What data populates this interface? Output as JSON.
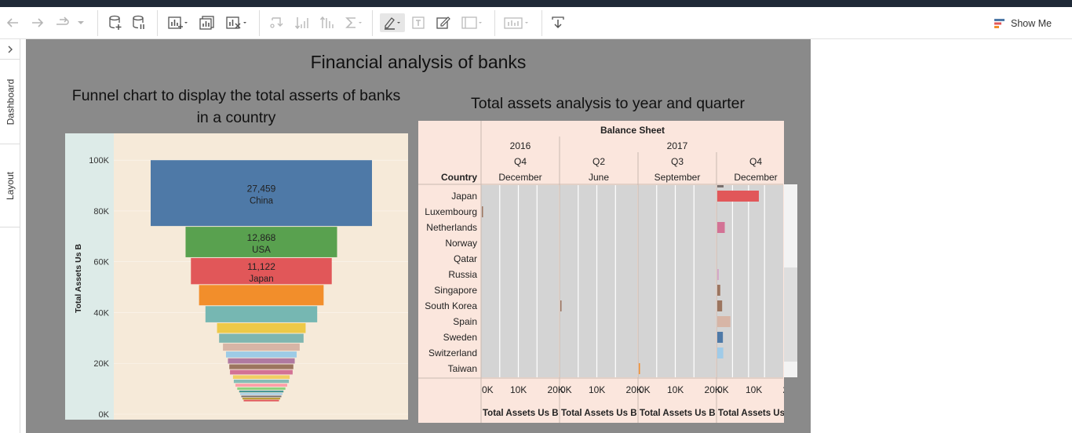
{
  "toolbar": {
    "show_me_label": "Show Me",
    "colors": {
      "icon": "#555555",
      "disabled_icon": "#b9b9b9",
      "show_me_bars": [
        "#4e79a7",
        "#e15759",
        "#f28e2b"
      ]
    }
  },
  "side_tabs": {
    "dashboard": "Dashboard",
    "layout": "Layout"
  },
  "dashboard": {
    "title": "Financial analysis of banks",
    "funnel_title": "Funnel chart to display the total asserts of banks in a country",
    "assets_title": "Total assets analysis to year and quarter"
  },
  "chart_data": [
    {
      "type": "bar",
      "subtype": "funnel",
      "ylabel": "Total Assets Us B",
      "ylim": [
        0,
        105000
      ],
      "yticks": [
        0,
        20000,
        40000,
        60000,
        80000,
        100000
      ],
      "ytick_labels": [
        "0K",
        "20K",
        "40K",
        "60K",
        "80K",
        "100K"
      ],
      "background": "#f6ead9",
      "axis_background": "#ddebe8",
      "segments": [
        {
          "label": "China",
          "value": 27459,
          "value_label": "27,459",
          "color": "#4e79a7"
        },
        {
          "label": "USA",
          "value": 12868,
          "value_label": "12,868",
          "color": "#59a14f"
        },
        {
          "label": "Japan",
          "value": 11122,
          "value_label": "11,122",
          "color": "#e15759"
        },
        {
          "value": 8700,
          "color": "#f28e2b"
        },
        {
          "value": 7000,
          "color": "#76b7b2"
        },
        {
          "value": 4400,
          "color": "#edc948"
        },
        {
          "value": 4000,
          "color": "#7fb6b0"
        },
        {
          "value": 3300,
          "color": "#d7b5a6"
        },
        {
          "value": 2800,
          "color": "#9dcbe6"
        },
        {
          "value": 2500,
          "color": "#b07aa1"
        },
        {
          "value": 2300,
          "color": "#9c755f"
        },
        {
          "value": 2200,
          "color": "#d37295"
        },
        {
          "value": 1800,
          "color": "#f1ce63"
        },
        {
          "value": 1700,
          "color": "#86bcb6"
        },
        {
          "value": 1500,
          "color": "#ff9da7"
        },
        {
          "value": 1300,
          "color": "#8cd17d"
        },
        {
          "value": 1100,
          "color": "#499894"
        },
        {
          "value": 1000,
          "color": "#a0cbe8"
        },
        {
          "value": 900,
          "color": "#79706e"
        },
        {
          "value": 800,
          "color": "#b6992d"
        },
        {
          "value": 700,
          "color": "#e15759"
        }
      ]
    },
    {
      "type": "bar",
      "subtype": "horizontal-small-multiples",
      "header_title": "Balance Sheet",
      "row_header": "Country",
      "years": [
        {
          "label": "2016",
          "span": 1
        },
        {
          "label": "2017",
          "span": 3
        }
      ],
      "columns": [
        {
          "quarter": "Q4",
          "month": "December"
        },
        {
          "quarter": "Q2",
          "month": "June"
        },
        {
          "quarter": "Q3",
          "month": "September"
        },
        {
          "quarter": "Q4",
          "month": "December"
        }
      ],
      "xlim": [
        0,
        21000
      ],
      "xtick_labels": [
        "0K",
        "10K",
        "20K"
      ],
      "xlabel": "Total Assets Us B",
      "countries": [
        "Japan",
        "Luxembourg",
        "Netherlands",
        "Norway",
        "Qatar",
        "Russia",
        "Singapore",
        "South Korea",
        "Spain",
        "Sweden",
        "Switzerland",
        "Taiwan"
      ],
      "series": [
        {
          "name": "December 2016",
          "values": [
            0,
            150,
            0,
            0,
            0,
            0,
            0,
            0,
            0,
            0,
            0,
            0
          ]
        },
        {
          "name": "June 2017",
          "values": [
            0,
            0,
            0,
            0,
            0,
            0,
            0,
            120,
            0,
            0,
            0,
            0
          ]
        },
        {
          "name": "September 2017",
          "values": [
            0,
            0,
            0,
            0,
            0,
            0,
            0,
            0,
            0,
            0,
            0,
            200
          ]
        },
        {
          "name": "December 2017",
          "values": [
            11122,
            0,
            2000,
            0,
            0,
            400,
            800,
            1300,
            3500,
            1500,
            1600,
            0
          ]
        }
      ],
      "bar_colors": [
        "#e15759",
        "#9c755f",
        "#d37295",
        "#b07aa1",
        "#8cd17d",
        "#d4a6c8",
        "#9c755f",
        "#9c755f",
        "#d7b5a6",
        "#4e79a7",
        "#a0cbe8",
        "#f28e2b"
      ],
      "panel_color": "#d4d4d4",
      "header_background": "#fbe6dd"
    }
  ]
}
